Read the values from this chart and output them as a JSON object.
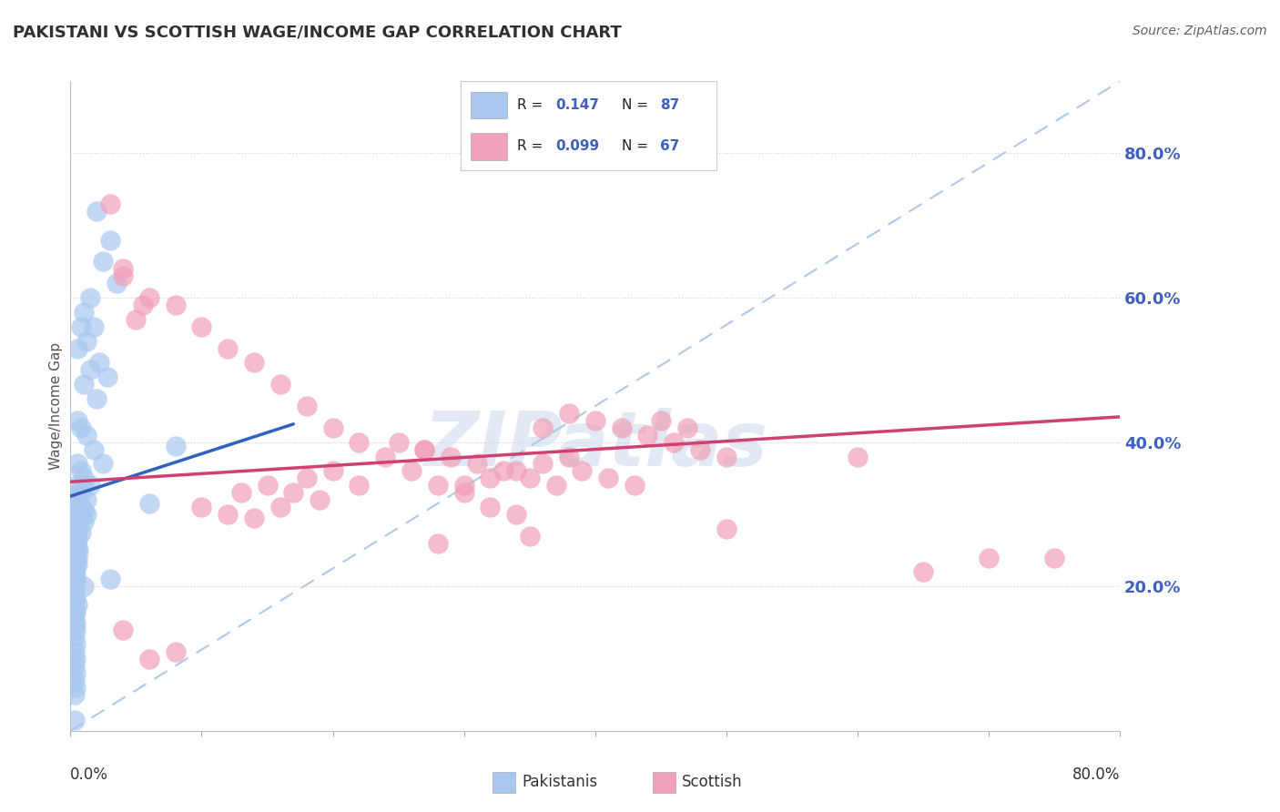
{
  "title": "PAKISTANI VS SCOTTISH WAGE/INCOME GAP CORRELATION CHART",
  "source": "Source: ZipAtlas.com",
  "ylabel": "Wage/Income Gap",
  "ytick_values": [
    0.2,
    0.4,
    0.6,
    0.8
  ],
  "xmin": 0.0,
  "xmax": 0.8,
  "ymin": 0.0,
  "ymax": 0.9,
  "legend_r1": "0.147",
  "legend_n1": "87",
  "legend_r2": "0.099",
  "legend_n2": "67",
  "color_blue": "#a8c8f0",
  "color_pink": "#f0a0b8",
  "color_trendline_blue": "#3060c0",
  "color_trendline_pink": "#d04070",
  "color_diagonal": "#b0c8e8",
  "color_grid": "#d0d0d0",
  "color_title": "#303030",
  "color_source": "#606060",
  "color_yticks": "#4060c0",
  "watermark_text": "ZIPatlas",
  "pakistanis_x": [
    0.02,
    0.03,
    0.025,
    0.035,
    0.015,
    0.01,
    0.018,
    0.012,
    0.022,
    0.028,
    0.008,
    0.005,
    0.015,
    0.01,
    0.02,
    0.005,
    0.008,
    0.012,
    0.018,
    0.025,
    0.005,
    0.008,
    0.01,
    0.015,
    0.005,
    0.008,
    0.01,
    0.005,
    0.012,
    0.006,
    0.004,
    0.008,
    0.006,
    0.004,
    0.01,
    0.012,
    0.005,
    0.008,
    0.006,
    0.01,
    0.005,
    0.004,
    0.003,
    0.005,
    0.008,
    0.004,
    0.005,
    0.003,
    0.004,
    0.005,
    0.003,
    0.006,
    0.004,
    0.003,
    0.005,
    0.004,
    0.003,
    0.08,
    0.005,
    0.004,
    0.003,
    0.004,
    0.003,
    0.004,
    0.01,
    0.003,
    0.06,
    0.004,
    0.003,
    0.005,
    0.003,
    0.004,
    0.003,
    0.004,
    0.003,
    0.004,
    0.003,
    0.004,
    0.003,
    0.004,
    0.003,
    0.004,
    0.003,
    0.004,
    0.003,
    0.03,
    0.003
  ],
  "pakistanis_y": [
    0.72,
    0.68,
    0.65,
    0.62,
    0.6,
    0.58,
    0.56,
    0.54,
    0.51,
    0.49,
    0.56,
    0.53,
    0.5,
    0.48,
    0.46,
    0.43,
    0.42,
    0.41,
    0.39,
    0.37,
    0.37,
    0.36,
    0.35,
    0.34,
    0.34,
    0.33,
    0.34,
    0.33,
    0.32,
    0.31,
    0.32,
    0.31,
    0.31,
    0.305,
    0.305,
    0.3,
    0.3,
    0.295,
    0.295,
    0.29,
    0.285,
    0.28,
    0.28,
    0.275,
    0.275,
    0.27,
    0.265,
    0.26,
    0.26,
    0.255,
    0.255,
    0.25,
    0.245,
    0.245,
    0.24,
    0.235,
    0.235,
    0.395,
    0.23,
    0.225,
    0.22,
    0.215,
    0.21,
    0.205,
    0.2,
    0.195,
    0.315,
    0.185,
    0.18,
    0.175,
    0.17,
    0.165,
    0.16,
    0.15,
    0.145,
    0.14,
    0.13,
    0.12,
    0.11,
    0.1,
    0.09,
    0.08,
    0.07,
    0.06,
    0.05,
    0.21,
    0.015
  ],
  "scottish_x": [
    0.03,
    0.04,
    0.05,
    0.04,
    0.055,
    0.06,
    0.08,
    0.1,
    0.12,
    0.14,
    0.16,
    0.18,
    0.2,
    0.22,
    0.24,
    0.26,
    0.28,
    0.3,
    0.32,
    0.34,
    0.36,
    0.38,
    0.4,
    0.42,
    0.44,
    0.46,
    0.48,
    0.5,
    0.27,
    0.29,
    0.31,
    0.33,
    0.35,
    0.37,
    0.39,
    0.41,
    0.43,
    0.18,
    0.2,
    0.22,
    0.13,
    0.15,
    0.17,
    0.19,
    0.1,
    0.12,
    0.14,
    0.16,
    0.25,
    0.27,
    0.38,
    0.36,
    0.34,
    0.32,
    0.3,
    0.45,
    0.47,
    0.6,
    0.65,
    0.7,
    0.04,
    0.06,
    0.08,
    0.35,
    0.28,
    0.75,
    0.5
  ],
  "scottish_y": [
    0.73,
    0.63,
    0.57,
    0.64,
    0.59,
    0.6,
    0.59,
    0.56,
    0.53,
    0.51,
    0.48,
    0.45,
    0.42,
    0.4,
    0.38,
    0.36,
    0.34,
    0.33,
    0.31,
    0.3,
    0.42,
    0.44,
    0.43,
    0.42,
    0.41,
    0.4,
    0.39,
    0.38,
    0.39,
    0.38,
    0.37,
    0.36,
    0.35,
    0.34,
    0.36,
    0.35,
    0.34,
    0.35,
    0.36,
    0.34,
    0.33,
    0.34,
    0.33,
    0.32,
    0.31,
    0.3,
    0.295,
    0.31,
    0.4,
    0.39,
    0.38,
    0.37,
    0.36,
    0.35,
    0.34,
    0.43,
    0.42,
    0.38,
    0.22,
    0.24,
    0.14,
    0.1,
    0.11,
    0.27,
    0.26,
    0.24,
    0.28
  ]
}
